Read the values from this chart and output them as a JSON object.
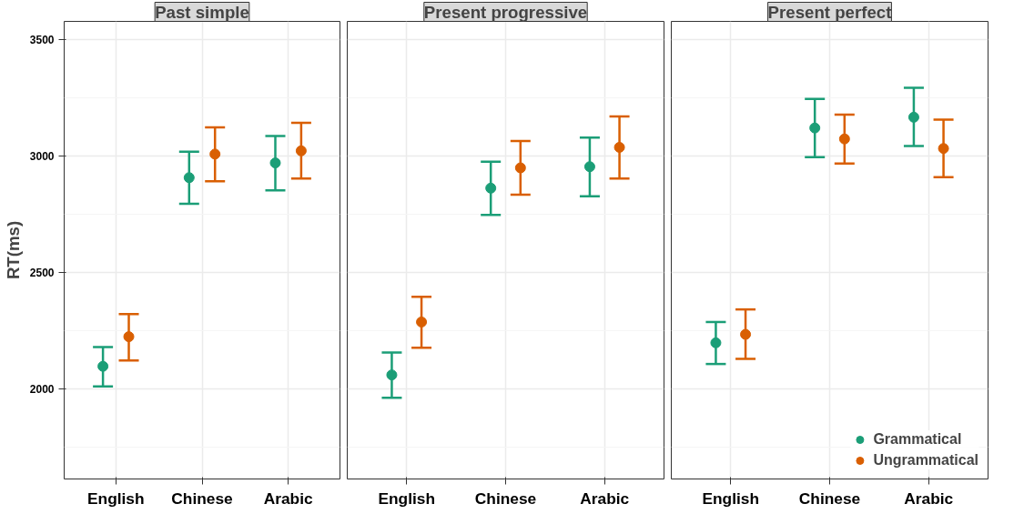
{
  "chart_data": [
    {
      "type": "scatter",
      "title": "Past simple",
      "ylabel": "RT(ms)",
      "categories": [
        "English",
        "Chinese",
        "Arabic"
      ],
      "ylim": [
        1615,
        3577
      ],
      "yticks": [
        2000,
        2500,
        3000,
        3500
      ],
      "grid": true,
      "marker": "circle",
      "legend": false,
      "series": [
        {
          "color": "#1b9e77",
          "values": [
            2098,
            2907,
            2970
          ],
          "errors": [
            [
              2012,
              2181
            ],
            [
              2795,
              3018
            ],
            [
              2852,
              3086
            ]
          ]
        },
        {
          "color": "#d95f02",
          "values": [
            2225,
            3008,
            3022
          ],
          "errors": [
            [
              2123,
              2322
            ],
            [
              2891,
              3123
            ],
            [
              2903,
              3142
            ]
          ]
        }
      ]
    },
    {
      "type": "scatter",
      "title": "Present progressive",
      "categories": [
        "English",
        "Chinese",
        "Arabic"
      ],
      "ylim": [
        1615,
        3577
      ],
      "yticks": [
        2000,
        2500,
        3000,
        3500
      ],
      "tick_labels": "x",
      "grid": true,
      "marker": "circle",
      "legend": false,
      "series": [
        {
          "color": "#1b9e77",
          "values": [
            2061,
            2862,
            2954
          ],
          "errors": [
            [
              1963,
              2157
            ],
            [
              2747,
              2975
            ],
            [
              2827,
              3079
            ]
          ]
        },
        {
          "color": "#d95f02",
          "values": [
            2288,
            2949,
            3037
          ],
          "errors": [
            [
              2178,
              2396
            ],
            [
              2834,
              3064
            ],
            [
              2903,
              3169
            ]
          ]
        }
      ]
    },
    {
      "type": "scatter",
      "title": "Present perfect",
      "categories": [
        "English",
        "Chinese",
        "Arabic"
      ],
      "ylim": [
        1615,
        3577
      ],
      "yticks": [
        2000,
        2500,
        3000,
        3500
      ],
      "tick_labels": "x",
      "grid": true,
      "marker": "circle",
      "legend": "bottom right",
      "series": [
        {
          "name": "Grammatical",
          "color": "#1b9e77",
          "values": [
            2199,
            3120,
            3166
          ],
          "errors": [
            [
              2108,
              2288
            ],
            [
              2995,
              3244
            ],
            [
              3043,
              3292
            ]
          ]
        },
        {
          "name": "Ungrammatical",
          "color": "#d95f02",
          "values": [
            2235,
            3073,
            3032
          ],
          "errors": [
            [
              2130,
              2342
            ],
            [
              2968,
              3177
            ],
            [
              2909,
              3156
            ]
          ]
        }
      ]
    }
  ]
}
